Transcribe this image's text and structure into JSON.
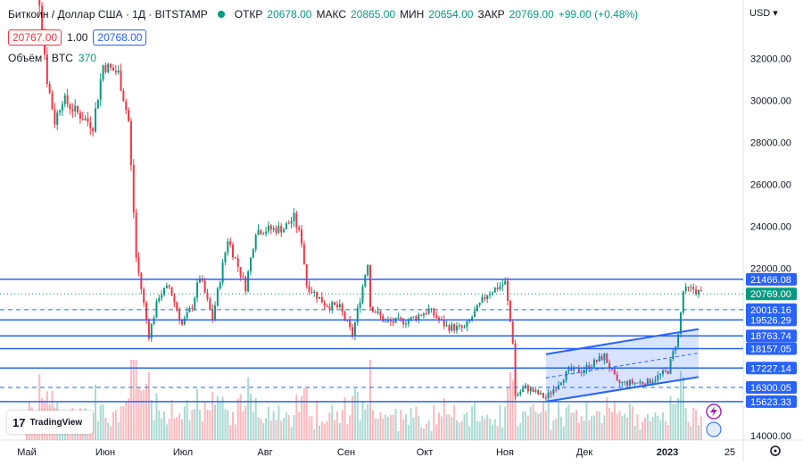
{
  "header": {
    "symbol": "Биткоин / Доллар США · 1Д · BITSTAMP",
    "open_label": "ОТКР",
    "open": "20678.00",
    "high_label": "МАКС",
    "high": "20865.00",
    "low_label": "МИН",
    "low": "20654.00",
    "close_label": "ЗАКР",
    "close": "20769.00",
    "change": "+99.00 (+0.48%)",
    "bid": "20767.00",
    "spread": "1.00",
    "ask": "20768.00",
    "volume_label": "Объём · BTC",
    "volume": "370",
    "currency": "USD"
  },
  "logo": {
    "text": "TradingView",
    "icon": "tradingview-logo-icon"
  },
  "colors": {
    "up": "#089981",
    "down": "#f23645",
    "line": "#2962ff",
    "bg": "#ffffff"
  },
  "chart_data": {
    "type": "candlestick",
    "title": "Биткоин / Доллар США · 1Д · BITSTAMP",
    "x_tick_labels": [
      "Май",
      "Июн",
      "Июл",
      "Авг",
      "Сен",
      "Окт",
      "Ноя",
      "Дек",
      "2023",
      "25"
    ],
    "y_tick_labels": [
      "32000.00",
      "30000.00",
      "28000.00",
      "26000.00",
      "24000.00",
      "22000.00",
      "14000.00"
    ],
    "y_ticks": [
      32000,
      30000,
      28000,
      26000,
      24000,
      22000,
      14000
    ],
    "ylim": [
      14000,
      33000
    ],
    "levels": [
      {
        "value": 21466.08,
        "label": "21466.08",
        "style": "solid"
      },
      {
        "value": 20016.16,
        "label": "20016.16",
        "style": "dashed"
      },
      {
        "value": 19526.29,
        "label": "19526.29",
        "style": "solid"
      },
      {
        "value": 18763.74,
        "label": "18763.74",
        "style": "solid"
      },
      {
        "value": 18157.05,
        "label": "18157.05",
        "style": "solid"
      },
      {
        "value": 17227.14,
        "label": "17227.14",
        "style": "solid"
      },
      {
        "value": 16300.05,
        "label": "16300.05",
        "style": "dashed"
      },
      {
        "value": 15623.33,
        "label": "15623.33",
        "style": "solid"
      }
    ],
    "last_price": {
      "value": 20769,
      "label": "20769.00"
    },
    "channel": {
      "start_date": "2022-11-21",
      "end_date": "2023-01-20",
      "lower_start": 15623.33,
      "upper_start": 17890,
      "lower_end": 16800,
      "upper_end": 19090
    },
    "ohlc_anchor_points": [
      [
        "2022-05-01",
        38000
      ],
      [
        "2022-05-05",
        36000
      ],
      [
        "2022-05-09",
        31000
      ],
      [
        "2022-05-12",
        29000
      ],
      [
        "2022-05-15",
        30100
      ],
      [
        "2022-05-20",
        29500
      ],
      [
        "2022-05-27",
        28800
      ],
      [
        "2022-05-31",
        31700
      ],
      [
        "2022-06-06",
        31300
      ],
      [
        "2022-06-10",
        29000
      ],
      [
        "2022-06-13",
        22500
      ],
      [
        "2022-06-18",
        18800
      ],
      [
        "2022-06-22",
        20700
      ],
      [
        "2022-06-26",
        21100
      ],
      [
        "2022-07-01",
        19300
      ],
      [
        "2022-07-05",
        20200
      ],
      [
        "2022-07-08",
        21600
      ],
      [
        "2022-07-13",
        19600
      ],
      [
        "2022-07-19",
        23400
      ],
      [
        "2022-07-26",
        21100
      ],
      [
        "2022-07-30",
        23800
      ],
      [
        "2022-08-10",
        23900
      ],
      [
        "2022-08-14",
        24400
      ],
      [
        "2022-08-17",
        23300
      ],
      [
        "2022-08-19",
        21200
      ],
      [
        "2022-08-26",
        20300
      ],
      [
        "2022-09-01",
        20100
      ],
      [
        "2022-09-06",
        18800
      ],
      [
        "2022-09-12",
        22300
      ],
      [
        "2022-09-13",
        20200
      ],
      [
        "2022-09-19",
        19400
      ],
      [
        "2022-09-28",
        19500
      ],
      [
        "2022-10-06",
        20000
      ],
      [
        "2022-10-13",
        19200
      ],
      [
        "2022-10-20",
        19100
      ],
      [
        "2022-10-29",
        20800
      ],
      [
        "2022-11-05",
        21300
      ],
      [
        "2022-11-08",
        18500
      ],
      [
        "2022-11-09",
        15900
      ],
      [
        "2022-11-13",
        16300
      ],
      [
        "2022-11-21",
        15800
      ],
      [
        "2022-11-30",
        17100
      ],
      [
        "2022-12-05",
        17100
      ],
      [
        "2022-12-14",
        17800
      ],
      [
        "2022-12-19",
        16500
      ],
      [
        "2022-12-31",
        16550
      ],
      [
        "2023-01-08",
        17100
      ],
      [
        "2023-01-12",
        18800
      ],
      [
        "2023-01-14",
        20900
      ],
      [
        "2023-01-18",
        21000
      ],
      [
        "2023-01-21",
        20769
      ]
    ],
    "grid": false,
    "legend": "top-left"
  }
}
